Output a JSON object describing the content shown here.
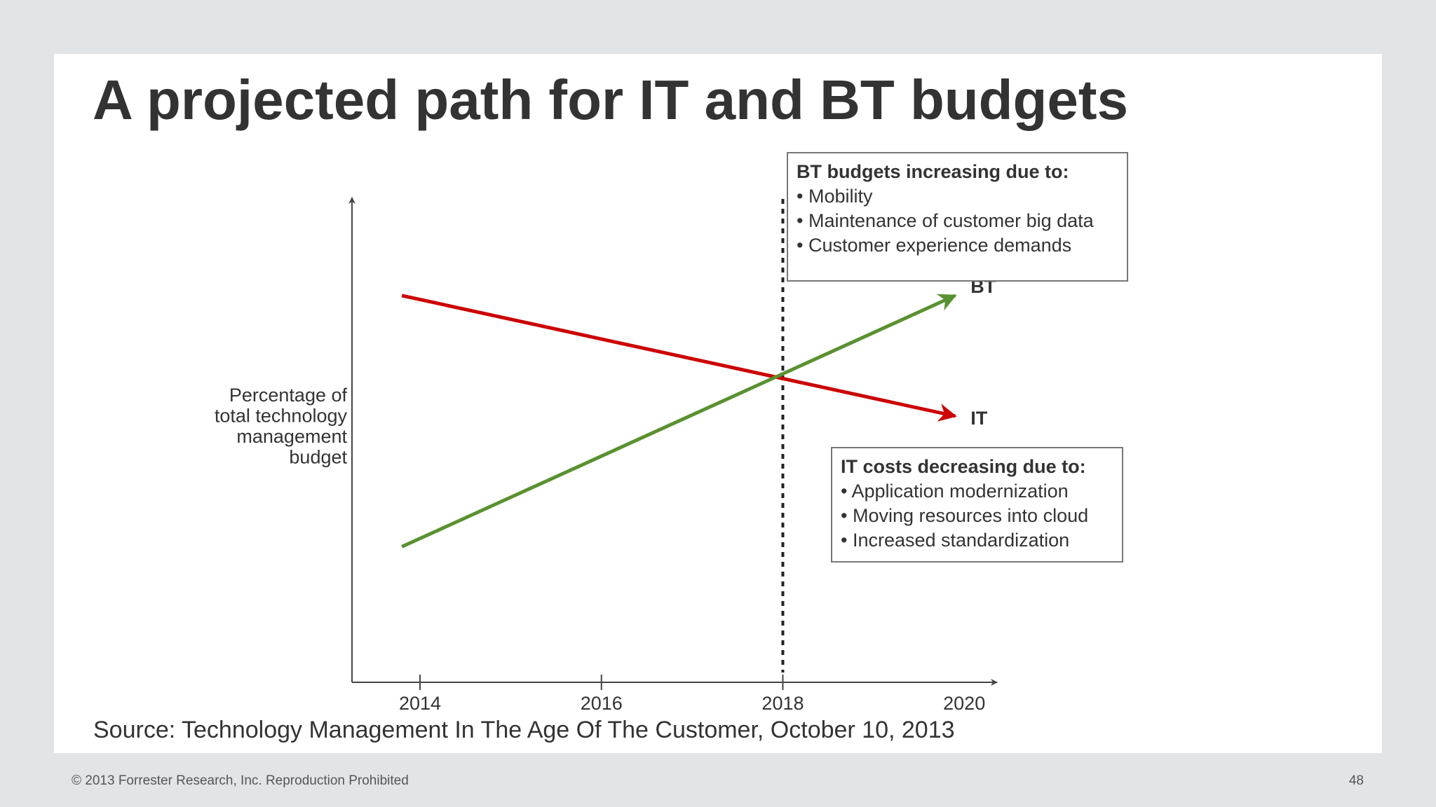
{
  "slide": {
    "title": "A projected path for IT and BT budgets",
    "source": "Source: Technology Management In The Age Of The Customer, October 10, 2013",
    "footer_copyright": "© 2013 Forrester Research, Inc. Reproduction Prohibited",
    "page_number": "48"
  },
  "chart_data": {
    "type": "line",
    "title": "",
    "xlabel": "",
    "ylabel": [
      "Percentage of",
      "total technology",
      "management",
      "budget"
    ],
    "x_ticks": [
      "2014",
      "2016",
      "2018",
      "2020"
    ],
    "xlim": [
      2013.25,
      2020.3
    ],
    "ylim": [
      0,
      100
    ],
    "y_ticks_shown": false,
    "grid": false,
    "series": [
      {
        "name": "IT",
        "color": "#cc0000",
        "x": [
          2013.8,
          2019.9
        ],
        "y": [
          77,
          53
        ]
      },
      {
        "name": "BT",
        "color": "#5a9130",
        "x": [
          2013.8,
          2019.9
        ],
        "y": [
          27,
          77
        ]
      }
    ],
    "reference_line": {
      "x": 2018,
      "style": "dotted",
      "color": "#222222"
    },
    "annotations": [
      {
        "heading": "BT budgets increasing due to:",
        "bullets": [
          "Mobility",
          "Maintenance of customer big data",
          "Customer experience demands"
        ]
      },
      {
        "heading": "IT costs decreasing due to:",
        "bullets": [
          "Application modernization",
          "Moving resources into cloud",
          "Increased standardization"
        ]
      }
    ]
  }
}
